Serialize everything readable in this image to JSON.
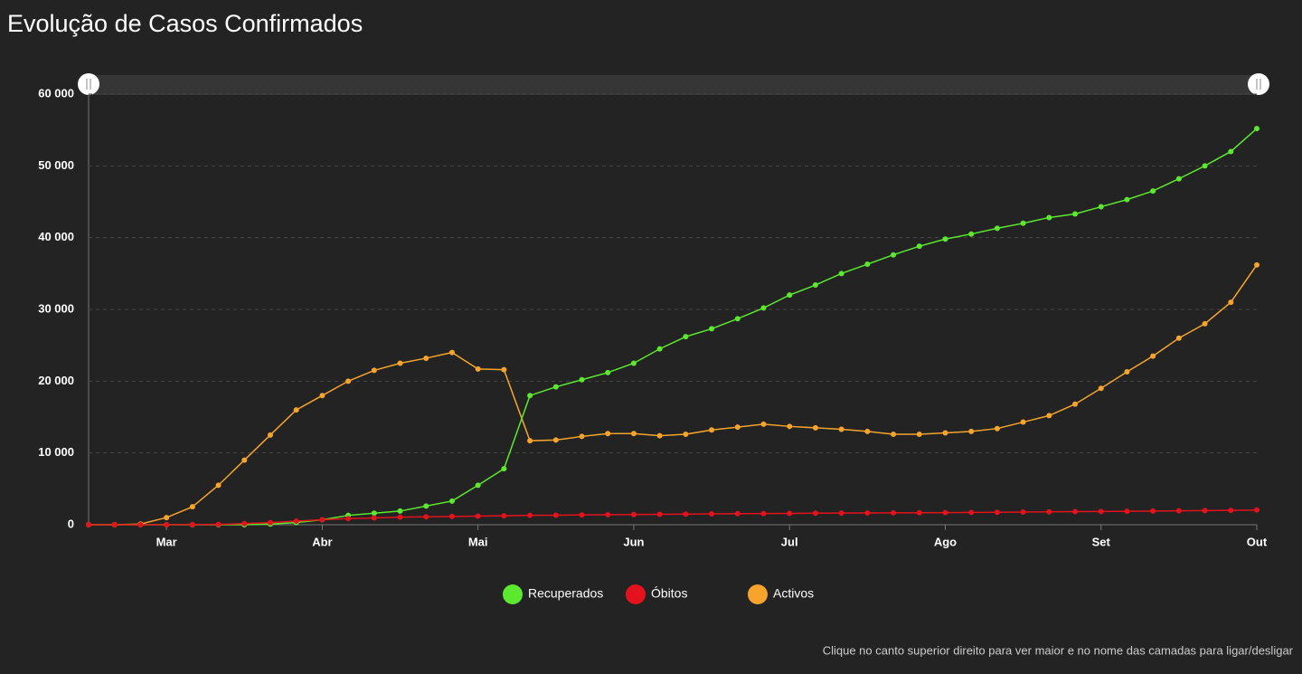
{
  "chart_data": {
    "type": "line",
    "title": "Evolução de Casos Confirmados",
    "note": "Clique no canto superior direito para ver maior e no nome das camadas para ligar/desligar",
    "categories": [
      null,
      null,
      null,
      "Mar",
      null,
      null,
      null,
      null,
      null,
      "Abr",
      null,
      null,
      null,
      null,
      null,
      "Mai",
      null,
      null,
      null,
      null,
      null,
      "Jun",
      null,
      null,
      null,
      null,
      null,
      "Jul",
      null,
      null,
      null,
      null,
      null,
      "Ago",
      null,
      null,
      null,
      null,
      null,
      "Set",
      null,
      null,
      null,
      null,
      null,
      "Out"
    ],
    "series": [
      {
        "name": "Recuperados",
        "color": "#5ce82e",
        "values": [
          0,
          0,
          0,
          0,
          0,
          0,
          0,
          100,
          300,
          700,
          1300,
          1600,
          1900,
          2600,
          3300,
          5500,
          7800,
          18000,
          19200,
          20200,
          21200,
          22500,
          24500,
          26200,
          27300,
          28700,
          30200,
          32000,
          33400,
          35000,
          36300,
          37600,
          38800,
          39800,
          40500,
          41300,
          42000,
          42800,
          43300,
          44300,
          45300,
          46500,
          48200,
          50000,
          52000,
          55200
        ]
      },
      {
        "name": "Óbitos",
        "color": "#e3121c",
        "values": [
          0,
          0,
          0,
          0,
          10,
          50,
          150,
          300,
          500,
          700,
          850,
          950,
          1050,
          1100,
          1150,
          1200,
          1250,
          1300,
          1330,
          1370,
          1400,
          1420,
          1450,
          1480,
          1510,
          1540,
          1560,
          1580,
          1600,
          1620,
          1640,
          1650,
          1670,
          1690,
          1710,
          1730,
          1760,
          1790,
          1820,
          1850,
          1870,
          1900,
          1940,
          1970,
          2000,
          2050
        ]
      },
      {
        "name": "Activos",
        "color": "#f6a42c",
        "values": [
          0,
          0,
          100,
          1000,
          2500,
          5500,
          9000,
          12500,
          16000,
          18000,
          20000,
          21500,
          22500,
          23200,
          24000,
          21700,
          21600,
          11700,
          11800,
          12300,
          12700,
          12700,
          12400,
          12600,
          13200,
          13600,
          14000,
          13700,
          13500,
          13300,
          13000,
          12600,
          12600,
          12800,
          13000,
          13400,
          14300,
          15200,
          16800,
          19000,
          21300,
          23500,
          26000,
          28000,
          31000,
          36200
        ]
      }
    ],
    "ylim": [
      0,
      60000
    ],
    "yticks": [
      0,
      {
        "value": 10000,
        "label": "10 000"
      },
      {
        "value": 20000,
        "label": "20 000"
      },
      {
        "value": 30000,
        "label": "30 000"
      },
      {
        "value": 40000,
        "label": "40 000"
      },
      {
        "value": 50000,
        "label": "50 000"
      },
      {
        "value": 60000,
        "label": "60 000"
      }
    ],
    "grid": true
  }
}
